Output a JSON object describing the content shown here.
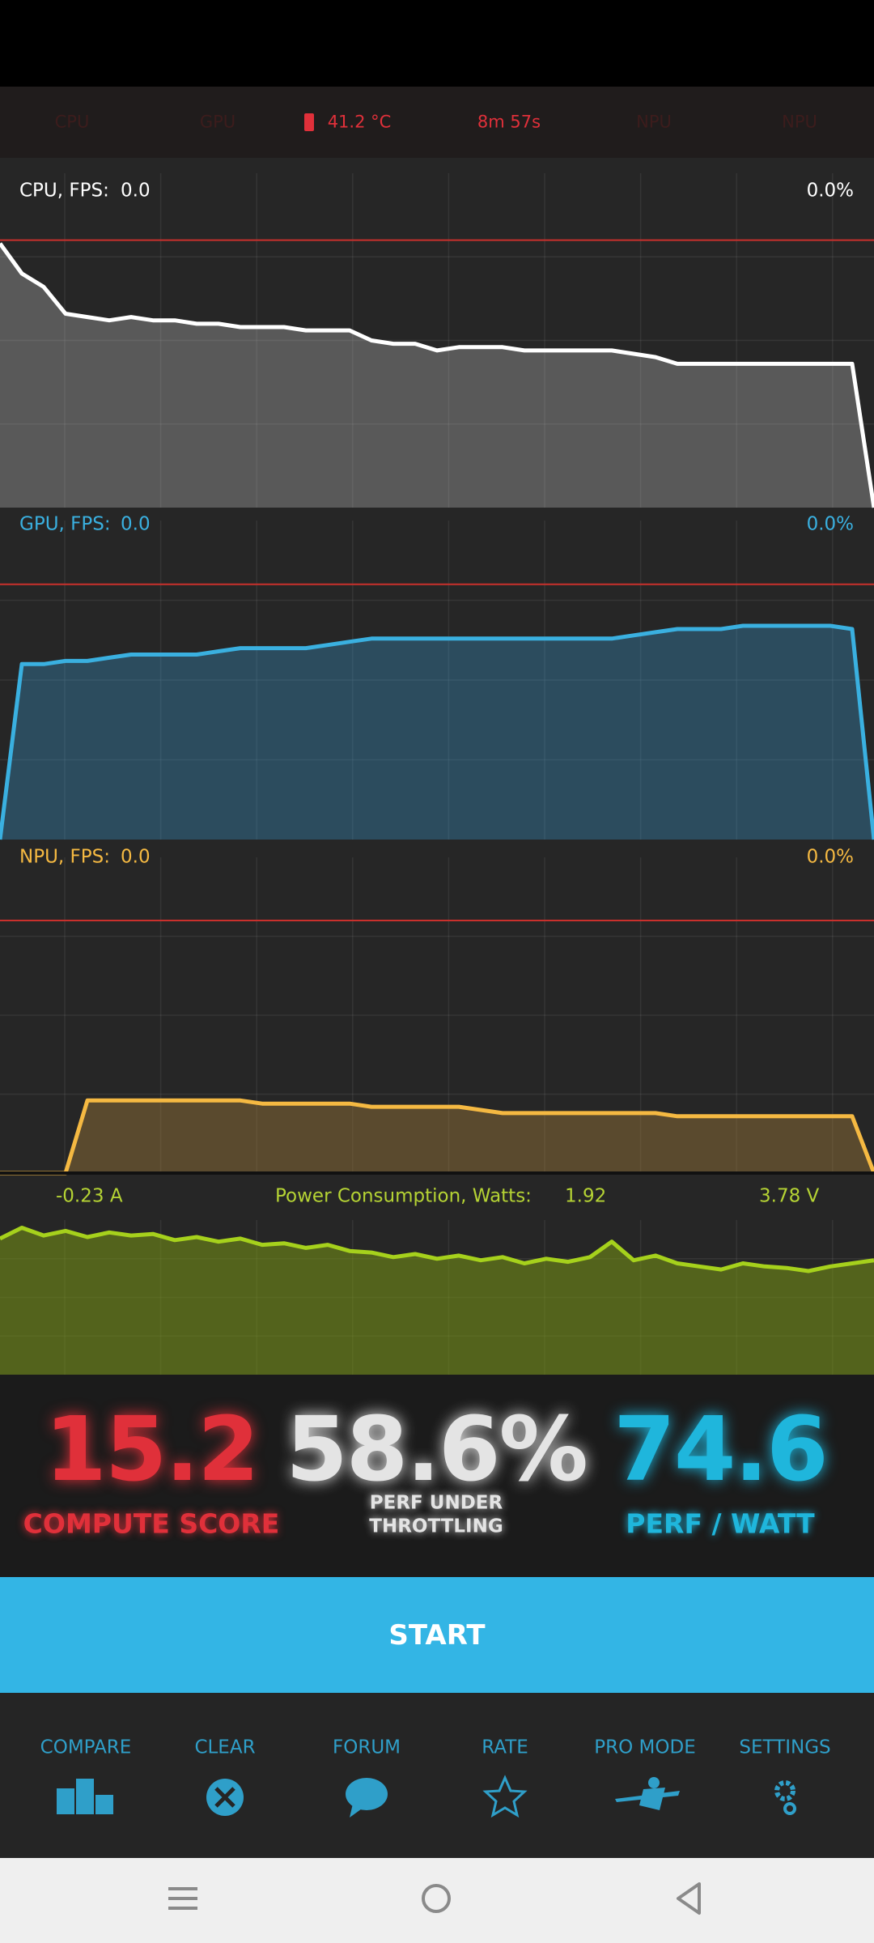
{
  "status_row": {
    "items": [
      "CPU",
      "GPU",
      "41.2 °C",
      "8m 57s",
      "NPU",
      "NPU"
    ]
  },
  "graphs": [
    {
      "label": "CPU, FPS:",
      "fps": "0.0",
      "percent": "0.0%",
      "color": "#ffffff",
      "fill": "rgba(200,200,200,0.32)",
      "limit": 80,
      "values": [
        79,
        70,
        66,
        58,
        57,
        56,
        57,
        56,
        56,
        55,
        55,
        54,
        54,
        54,
        53,
        53,
        53,
        50,
        49,
        49,
        47,
        48,
        48,
        48,
        47,
        47,
        47,
        47,
        47,
        46,
        45,
        43,
        43,
        43,
        43,
        43,
        43,
        43,
        43,
        43,
        0
      ]
    },
    {
      "label": "GPU, FPS:",
      "fps": "0.0",
      "percent": "0.0%",
      "color": "#3ab0e0",
      "fill": "rgba(58,150,200,0.35)",
      "limit": 80,
      "values": [
        0,
        55,
        55,
        56,
        56,
        57,
        58,
        58,
        58,
        58,
        59,
        60,
        60,
        60,
        60,
        61,
        62,
        63,
        63,
        63,
        63,
        63,
        63,
        63,
        63,
        63,
        63,
        63,
        63,
        64,
        65,
        66,
        66,
        66,
        67,
        67,
        67,
        67,
        67,
        66,
        0
      ]
    },
    {
      "label": "NPU, FPS:",
      "fps": "0.0",
      "percent": "0.0%",
      "color": "#f5b942",
      "fill": "rgba(170,130,60,0.4)",
      "limit": 80,
      "values": [
        0,
        0,
        0,
        0,
        23,
        23,
        23,
        23,
        23,
        23,
        23,
        23,
        22,
        22,
        22,
        22,
        22,
        21,
        21,
        21,
        21,
        21,
        20,
        19,
        19,
        19,
        19,
        19,
        19,
        19,
        19,
        18,
        18,
        18,
        18,
        18,
        18,
        18,
        18,
        18,
        0
      ]
    }
  ],
  "power": {
    "current": "-0.23 A",
    "label": "Power Consumption, Watts:",
    "watts": "1.92",
    "voltage": "3.78 V",
    "color": "#a6d11c",
    "fill": "rgba(120,150,20,0.55)",
    "values": [
      88,
      95,
      90,
      93,
      89,
      92,
      90,
      91,
      87,
      89,
      86,
      88,
      84,
      85,
      82,
      84,
      80,
      79,
      76,
      78,
      75,
      77,
      74,
      76,
      72,
      75,
      73,
      76,
      86,
      74,
      77,
      72,
      70,
      68,
      72,
      70,
      69,
      67,
      70,
      72,
      74
    ]
  },
  "scores": [
    {
      "value": "15.2",
      "label": "COMPUTE SCORE",
      "color": "#e0303a"
    },
    {
      "value": "58.6%",
      "label": "PERF UNDER THROTTLING",
      "color": "#e4e4e4"
    },
    {
      "value": "74.6",
      "label": "PERF / WATT",
      "color": "#1fb6dc"
    }
  ],
  "start_button": "START",
  "nav": [
    "COMPARE",
    "CLEAR",
    "FORUM",
    "RATE",
    "PRO MODE",
    "SETTINGS"
  ]
}
